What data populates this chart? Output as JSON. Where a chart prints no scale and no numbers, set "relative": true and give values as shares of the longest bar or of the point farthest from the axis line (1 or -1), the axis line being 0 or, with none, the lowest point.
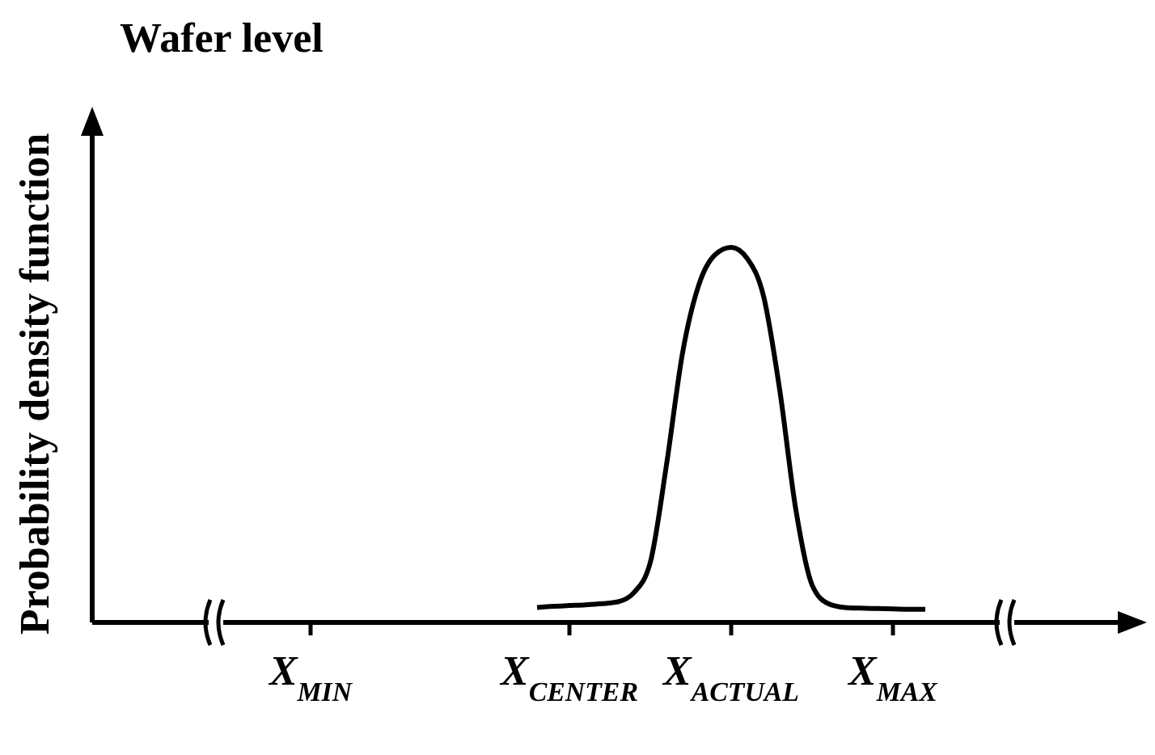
{
  "chart_data": {
    "type": "line",
    "title": "Wafer level",
    "ylabel": "Probability density function",
    "relative": true,
    "categories": [
      null,
      null,
      null,
      null,
      null,
      null,
      null,
      null,
      null,
      null,
      null,
      null,
      null,
      "X$_{MIN}$",
      null,
      null,
      null,
      null,
      null,
      null,
      null,
      null,
      null,
      null,
      null,
      null,
      null,
      null,
      null,
      "X$_{CENTER}$",
      null,
      null,
      null,
      null,
      null,
      null,
      null,
      null,
      null,
      "X$_{ACTUAL}$",
      null,
      null,
      null,
      null,
      null,
      null,
      null,
      null,
      null,
      "X$_{MAX}$",
      null,
      null,
      null,
      null,
      null,
      null,
      null,
      null,
      null,
      null,
      null,
      null,
      null
    ],
    "series": [
      {
        "color": "#000000",
        "values": [
          null,
          null,
          null,
          null,
          null,
          null,
          null,
          null,
          null,
          null,
          null,
          null,
          null,
          null,
          null,
          null,
          null,
          null,
          null,
          null,
          null,
          null,
          null,
          null,
          null,
          null,
          null,
          0.04,
          0.043,
          0.045,
          0.047,
          0.05,
          0.055,
          0.08,
          0.16,
          0.42,
          0.72,
          0.9,
          0.98,
          1,
          0.97,
          0.87,
          0.62,
          0.3,
          0.1,
          0.05,
          0.04,
          0.038,
          0.037,
          0.036,
          0.035,
          0.035,
          null,
          null,
          null,
          null,
          null,
          null,
          null,
          null,
          null,
          null,
          null
        ]
      }
    ]
  }
}
